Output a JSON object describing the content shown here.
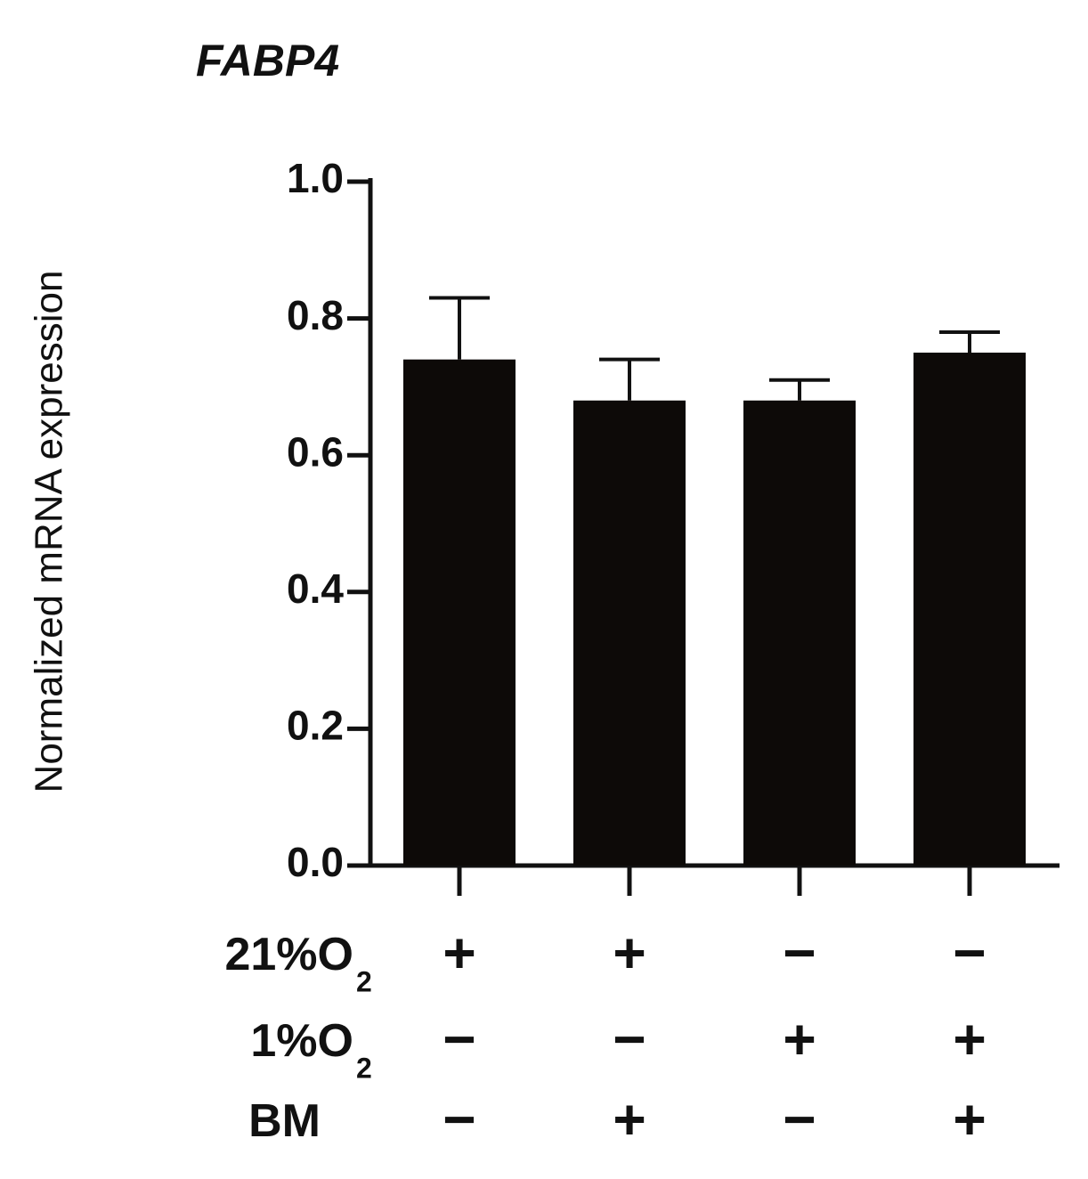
{
  "chart_data": {
    "type": "bar",
    "title": "FABP4",
    "y_label": "Normalized mRNA expression",
    "values": [
      0.74,
      0.68,
      0.68,
      0.75
    ],
    "errors": [
      0.09,
      0.06,
      0.03,
      0.03
    ],
    "color": "#0d0a08",
    "ylim": [
      0,
      1.0
    ],
    "yticks": [
      {
        "value": 0,
        "label": "0.0"
      },
      0.2,
      0.4,
      0.6,
      0.8,
      {
        "value": 1.0,
        "label": "1.0"
      }
    ],
    "grid": false,
    "condition_rows": [
      {
        "label": "21%O",
        "subscript": "2",
        "signs": [
          "+",
          "+",
          "−",
          "−"
        ]
      },
      {
        "label": "1%O",
        "subscript": "2",
        "signs": [
          "−",
          "−",
          "+",
          "+"
        ]
      },
      {
        "label": "BM",
        "signs": [
          "−",
          "+",
          "−",
          "+"
        ]
      }
    ]
  }
}
